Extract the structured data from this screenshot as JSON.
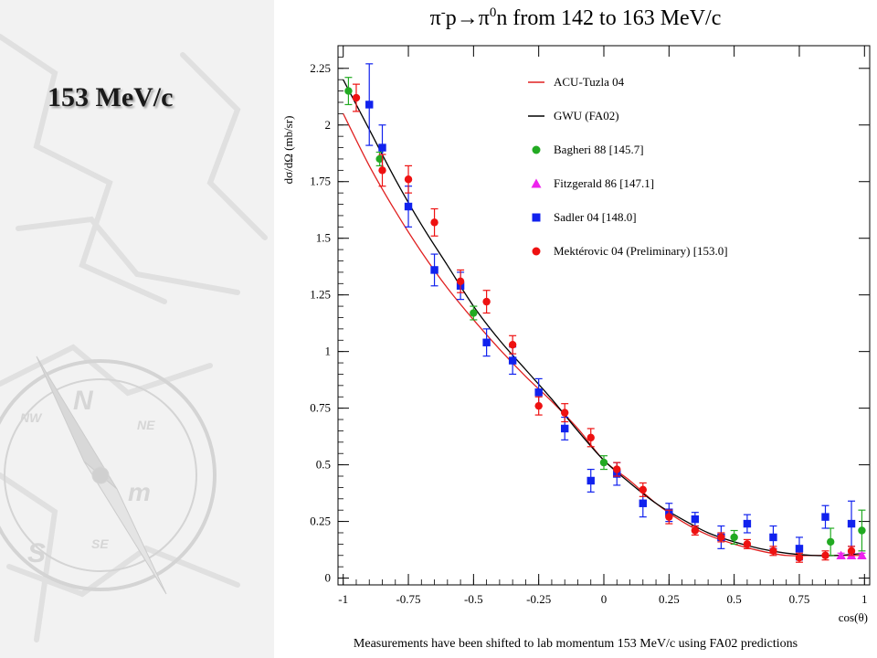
{
  "slide": {
    "heading": "153 MeV/c"
  },
  "footnote": "Measurements have been shifted to lab momentum 153 MeV/c using FA02 predictions",
  "chart_data": {
    "type": "scatter",
    "title": {
      "reaction_pi": "π",
      "reaction_pi_charge": "-",
      "reaction_mid": "p→π",
      "reaction_pi0_charge": "0",
      "reaction_end": "n from 142 to 163 MeV/c"
    },
    "xlabel": "cos(θ)",
    "ylabel": "dσ/dΩ (mb/sr)",
    "xlim": [
      -1.02,
      1.02
    ],
    "ylim": [
      -0.03,
      2.35
    ],
    "x_ticks": [
      -1,
      -0.75,
      -0.5,
      -0.25,
      0,
      0.25,
      0.5,
      0.75,
      1
    ],
    "x_tick_labels": [
      "-1",
      "-0.75",
      "-0.5",
      "-0.25",
      "0",
      "0.25",
      "0.5",
      "0.75",
      "1"
    ],
    "y_ticks": [
      0,
      0.25,
      0.5,
      0.75,
      1,
      1.25,
      1.5,
      1.75,
      2,
      2.25
    ],
    "y_tick_labels": [
      "0",
      "0.25",
      "0.5",
      "0.75",
      "1",
      "1.25",
      "1.5",
      "1.75",
      "2",
      "2.25"
    ],
    "legend_position": "top-right",
    "curves": [
      {
        "name": "ACU-Tuzla 04",
        "color": "#e02020",
        "x": [
          -1,
          -0.9,
          -0.8,
          -0.7,
          -0.6,
          -0.5,
          -0.4,
          -0.3,
          -0.2,
          -0.1,
          0,
          0.1,
          0.2,
          0.3,
          0.4,
          0.5,
          0.6,
          0.7,
          0.8,
          0.9,
          1
        ],
        "y": [
          2.05,
          1.82,
          1.62,
          1.44,
          1.28,
          1.14,
          1.01,
          0.89,
          0.78,
          0.66,
          0.52,
          0.43,
          0.33,
          0.25,
          0.19,
          0.15,
          0.12,
          0.1,
          0.1,
          0.1,
          0.1
        ]
      },
      {
        "name": "GWU (FA02)",
        "color": "#000000",
        "x": [
          -1,
          -0.9,
          -0.8,
          -0.7,
          -0.6,
          -0.5,
          -0.4,
          -0.3,
          -0.2,
          -0.1,
          0,
          0.1,
          0.2,
          0.3,
          0.4,
          0.5,
          0.6,
          0.7,
          0.8,
          0.9,
          1
        ],
        "y": [
          2.2,
          1.98,
          1.76,
          1.56,
          1.38,
          1.2,
          1.05,
          0.92,
          0.79,
          0.65,
          0.52,
          0.42,
          0.33,
          0.26,
          0.2,
          0.16,
          0.13,
          0.11,
          0.1,
          0.1,
          0.11
        ]
      }
    ],
    "series": [
      {
        "name": "Bagheri 88  [145.7]",
        "color": "#22aa22",
        "marker": "circle",
        "x": [
          -0.98,
          -0.86,
          -0.5,
          0.0,
          0.5,
          0.87,
          0.99
        ],
        "y": [
          2.15,
          1.85,
          1.17,
          0.51,
          0.18,
          0.16,
          0.21
        ],
        "err": [
          0.06,
          0.03,
          0.03,
          0.03,
          0.03,
          0.06,
          0.09
        ]
      },
      {
        "name": "Fitzgerald 86  [147.1]",
        "color": "#ee22ee",
        "marker": "triangle",
        "x": [
          0.91,
          0.95,
          0.99
        ],
        "y": [
          0.1,
          0.1,
          0.1
        ],
        "err": [
          0.01,
          0.01,
          0.01
        ]
      },
      {
        "name": "Sadler 04  [148.0]",
        "color": "#1122ee",
        "marker": "square",
        "x": [
          -0.9,
          -0.85,
          -0.75,
          -0.65,
          -0.55,
          -0.45,
          -0.35,
          -0.25,
          -0.15,
          -0.05,
          0.05,
          0.15,
          0.25,
          0.35,
          0.45,
          0.55,
          0.65,
          0.75,
          0.85,
          0.95
        ],
        "y": [
          2.09,
          1.9,
          1.64,
          1.36,
          1.29,
          1.04,
          0.96,
          0.82,
          0.66,
          0.43,
          0.46,
          0.33,
          0.29,
          0.26,
          0.18,
          0.24,
          0.18,
          0.13,
          0.27,
          0.24
        ],
        "err": [
          0.18,
          0.1,
          0.09,
          0.07,
          0.06,
          0.06,
          0.06,
          0.06,
          0.05,
          0.05,
          0.05,
          0.06,
          0.04,
          0.03,
          0.05,
          0.04,
          0.05,
          0.05,
          0.05,
          0.1
        ]
      },
      {
        "name": "Mektérovic 04 (Preliminary)  [153.0]",
        "color": "#ee1111",
        "marker": "circle",
        "x": [
          -0.95,
          -0.85,
          -0.75,
          -0.65,
          -0.55,
          -0.45,
          -0.35,
          -0.25,
          -0.15,
          -0.05,
          0.05,
          0.15,
          0.25,
          0.35,
          0.45,
          0.55,
          0.65,
          0.75,
          0.85,
          0.95
        ],
        "y": [
          2.12,
          1.8,
          1.76,
          1.57,
          1.31,
          1.22,
          1.03,
          0.76,
          0.73,
          0.62,
          0.48,
          0.39,
          0.27,
          0.21,
          0.18,
          0.15,
          0.12,
          0.09,
          0.1,
          0.12
        ],
        "err": [
          0.06,
          0.07,
          0.06,
          0.06,
          0.05,
          0.05,
          0.04,
          0.04,
          0.04,
          0.04,
          0.03,
          0.03,
          0.03,
          0.02,
          0.02,
          0.02,
          0.02,
          0.02,
          0.02,
          0.02
        ]
      }
    ]
  }
}
